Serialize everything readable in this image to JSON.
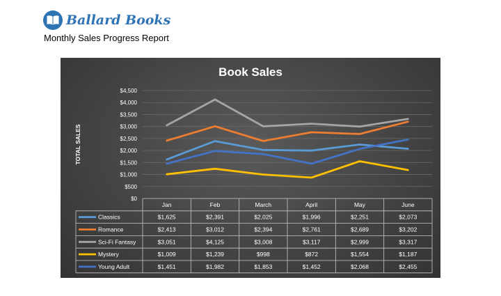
{
  "brand": {
    "name": "Ballard Books",
    "logo_icon": "open-book-icon"
  },
  "report": {
    "title": "Monthly Sales Progress Report"
  },
  "chart_data": {
    "type": "line",
    "title": "Book Sales",
    "ylabel": "TOTAL SALES",
    "xlabel": "",
    "categories": [
      "Jan",
      "Feb",
      "March",
      "April",
      "May",
      "June"
    ],
    "ylim": [
      0,
      4500
    ],
    "yticks": [
      0,
      500,
      1000,
      1500,
      2000,
      2500,
      3000,
      3500,
      4000,
      4500
    ],
    "ytick_labels": [
      "$0",
      "$500",
      "$1,000",
      "$1,500",
      "$2,000",
      "$2,500",
      "$3,000",
      "$3,500",
      "$4,000",
      "$4,500"
    ],
    "grid": true,
    "legend": "data-table",
    "series": [
      {
        "name": "Classics",
        "color": "#5b9bd5",
        "values": [
          1625,
          2391,
          2025,
          1996,
          2251,
          2073
        ],
        "labels": [
          "$1,625",
          "$2,391",
          "$2,025",
          "$1,996",
          "$2,251",
          "$2,073"
        ]
      },
      {
        "name": "Romance",
        "color": "#ed7d31",
        "values": [
          2413,
          3012,
          2394,
          2761,
          2689,
          3202
        ],
        "labels": [
          "$2,413",
          "$3,012",
          "$2,394",
          "$2,761",
          "$2,689",
          "$3,202"
        ]
      },
      {
        "name": "Sci-Fi Fantasy",
        "color": "#a5a5a5",
        "values": [
          3051,
          4125,
          3008,
          3117,
          2999,
          3317
        ],
        "labels": [
          "$3,051",
          "$4,125",
          "$3,008",
          "$3,117",
          "$2,999",
          "$3,317"
        ]
      },
      {
        "name": "Mystery",
        "color": "#ffc000",
        "values": [
          1009,
          1239,
          998,
          872,
          1554,
          1187
        ],
        "labels": [
          "$1,009",
          "$1,239",
          "$998",
          "$872",
          "$1,554",
          "$1,187"
        ]
      },
      {
        "name": "Young Adult",
        "color": "#4472c4",
        "values": [
          1451,
          1982,
          1853,
          1452,
          2068,
          2455
        ],
        "labels": [
          "$1,451",
          "$1,982",
          "$1,853",
          "$1,452",
          "$2,068",
          "$2,455"
        ]
      }
    ]
  }
}
